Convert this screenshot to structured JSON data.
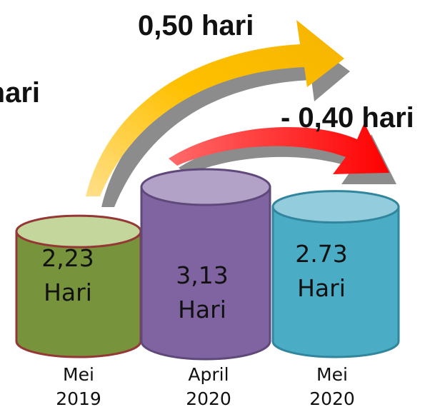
{
  "chart_data": {
    "type": "bar",
    "categories": [
      "Mei 2019",
      "April 2020",
      "Mei 2020"
    ],
    "values": [
      2.23,
      3.13,
      2.73
    ],
    "value_labels": [
      "2,23 Hari",
      "3,13 Hari",
      "2.73 Hari"
    ],
    "colors": [
      "#77933c",
      "#8064a2",
      "#4bacc6"
    ],
    "annotations": [
      "0,50 hari",
      "- 0,40 hari",
      "hari"
    ]
  }
}
